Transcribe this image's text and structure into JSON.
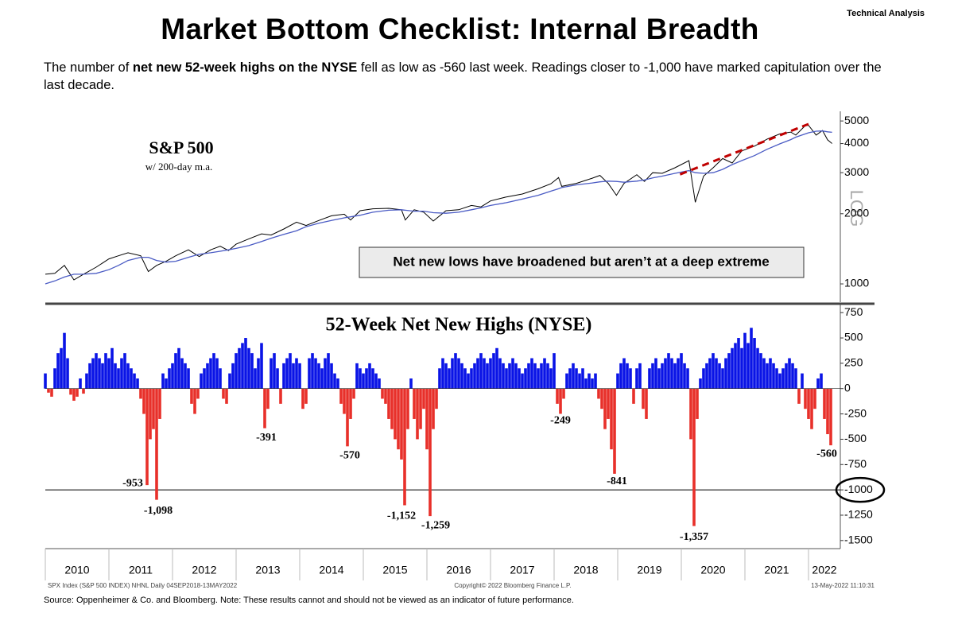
{
  "header": {
    "tag": "Technical Analysis",
    "title": "Market Bottom Checklist: Internal Breadth",
    "subtitle": [
      {
        "text": "The number of "
      },
      {
        "text": "net new 52-week highs on the NYSE",
        "bold": true
      },
      {
        "text": " fell as low as -560 last week.  Readings closer to -1,000 have marked capitulation over the last decade."
      }
    ]
  },
  "chart_data": [
    {
      "type": "line",
      "title": "S&P 500",
      "subtitle": "w/ 200-day m.a.",
      "annotation": "Net new lows have broadened but aren’t at a deep extreme",
      "log_scale": true,
      "scale_label": "LOG",
      "xlim": [
        2010,
        2022.5
      ],
      "ylim": [
        835,
        5500
      ],
      "yticks": [
        1000,
        2000,
        3000,
        4000,
        5000
      ],
      "x": [
        2010,
        2010.15,
        2010.3,
        2010.45,
        2010.6,
        2010.8,
        2011,
        2011.15,
        2011.3,
        2011.5,
        2011.62,
        2011.75,
        2011.9,
        2012.05,
        2012.25,
        2012.42,
        2012.6,
        2012.75,
        2012.88,
        2013,
        2013.2,
        2013.4,
        2013.55,
        2013.75,
        2013.95,
        2014.1,
        2014.3,
        2014.5,
        2014.7,
        2014.8,
        2014.95,
        2015.15,
        2015.4,
        2015.6,
        2015.66,
        2015.8,
        2015.95,
        2016.1,
        2016.3,
        2016.5,
        2016.7,
        2016.85,
        2017,
        2017.25,
        2017.5,
        2017.75,
        2017.95,
        2018.07,
        2018.12,
        2018.35,
        2018.6,
        2018.72,
        2018.85,
        2018.98,
        2019.1,
        2019.3,
        2019.42,
        2019.55,
        2019.7,
        2019.9,
        2020.12,
        2020.22,
        2020.35,
        2020.5,
        2020.65,
        2020.8,
        2020.95,
        2021.15,
        2021.35,
        2021.55,
        2021.72,
        2021.8,
        2021.95,
        2022,
        2022.12,
        2022.22,
        2022.3,
        2022.37
      ],
      "series": [
        {
          "color": "#000000",
          "values": [
            1100,
            1110,
            1200,
            1040,
            1100,
            1180,
            1280,
            1320,
            1360,
            1320,
            1130,
            1200,
            1250,
            1320,
            1400,
            1310,
            1400,
            1450,
            1390,
            1480,
            1560,
            1640,
            1620,
            1720,
            1840,
            1780,
            1870,
            1960,
            1990,
            1880,
            2060,
            2100,
            2110,
            2080,
            1880,
            2080,
            2030,
            1860,
            2060,
            2080,
            2170,
            2140,
            2270,
            2360,
            2430,
            2560,
            2690,
            2860,
            2620,
            2700,
            2840,
            2920,
            2700,
            2400,
            2700,
            2940,
            2750,
            3000,
            2980,
            3150,
            3380,
            2240,
            2900,
            3150,
            3450,
            3300,
            3720,
            3900,
            4180,
            4400,
            4480,
            4350,
            4780,
            4790,
            4350,
            4550,
            4150,
            4000
          ]
        },
        {
          "color": "#4a5bc4",
          "values": [
            1000,
            1030,
            1070,
            1100,
            1100,
            1110,
            1150,
            1200,
            1260,
            1300,
            1300,
            1260,
            1240,
            1250,
            1300,
            1340,
            1360,
            1380,
            1400,
            1420,
            1460,
            1520,
            1570,
            1630,
            1690,
            1760,
            1820,
            1870,
            1920,
            1940,
            1970,
            2030,
            2070,
            2080,
            2070,
            2050,
            2050,
            2020,
            2010,
            2030,
            2080,
            2120,
            2170,
            2230,
            2310,
            2400,
            2500,
            2560,
            2590,
            2660,
            2710,
            2740,
            2760,
            2750,
            2730,
            2760,
            2790,
            2850,
            2900,
            2980,
            3060,
            3000,
            2980,
            3000,
            3100,
            3250,
            3380,
            3550,
            3780,
            3990,
            4160,
            4260,
            4400,
            4450,
            4520,
            4530,
            4490,
            4470
          ]
        }
      ],
      "trendline": {
        "x": [
          2019.98,
          2022.0
        ],
        "y": [
          2950,
          4850
        ],
        "color": "#c00000"
      }
    },
    {
      "type": "bar",
      "title": "52-Week Net New Highs (NYSE)",
      "xlim": [
        2010,
        2022.5
      ],
      "ylim": [
        -1580,
        830
      ],
      "yticks": [
        -1500,
        -1250,
        -1000,
        -750,
        -500,
        -250,
        0,
        250,
        500,
        750
      ],
      "reference_line": -1000,
      "highlight_tick": -1000,
      "xticks": [
        2010,
        2011,
        2012,
        2013,
        2014,
        2015,
        2016,
        2017,
        2018,
        2019,
        2020,
        2021,
        2022
      ],
      "colors": {
        "positive": "#0a14e6",
        "negative": "#e8302a"
      },
      "x": [
        2010,
        2010.05,
        2010.1,
        2010.15,
        2010.2,
        2010.25,
        2010.3,
        2010.35,
        2010.4,
        2010.45,
        2010.5,
        2010.55,
        2010.6,
        2010.65,
        2010.7,
        2010.75,
        2010.8,
        2010.85,
        2010.9,
        2010.95,
        2011,
        2011.05,
        2011.1,
        2011.15,
        2011.2,
        2011.25,
        2011.3,
        2011.35,
        2011.4,
        2011.45,
        2011.5,
        2011.55,
        2011.6,
        2011.65,
        2011.7,
        2011.75,
        2011.8,
        2011.85,
        2011.9,
        2011.95,
        2012,
        2012.05,
        2012.1,
        2012.15,
        2012.2,
        2012.25,
        2012.3,
        2012.35,
        2012.4,
        2012.45,
        2012.5,
        2012.55,
        2012.6,
        2012.65,
        2012.7,
        2012.75,
        2012.8,
        2012.85,
        2012.9,
        2012.95,
        2013,
        2013.05,
        2013.1,
        2013.15,
        2013.2,
        2013.25,
        2013.3,
        2013.35,
        2013.4,
        2013.45,
        2013.5,
        2013.55,
        2013.6,
        2013.65,
        2013.7,
        2013.75,
        2013.8,
        2013.85,
        2013.9,
        2013.95,
        2014,
        2014.05,
        2014.1,
        2014.15,
        2014.2,
        2014.25,
        2014.3,
        2014.35,
        2014.4,
        2014.45,
        2014.5,
        2014.55,
        2014.6,
        2014.65,
        2014.7,
        2014.75,
        2014.8,
        2014.85,
        2014.9,
        2014.95,
        2015,
        2015.05,
        2015.1,
        2015.15,
        2015.2,
        2015.25,
        2015.3,
        2015.35,
        2015.4,
        2015.45,
        2015.5,
        2015.55,
        2015.6,
        2015.65,
        2015.7,
        2015.75,
        2015.8,
        2015.85,
        2015.9,
        2015.95,
        2016,
        2016.05,
        2016.1,
        2016.15,
        2016.2,
        2016.25,
        2016.3,
        2016.35,
        2016.4,
        2016.45,
        2016.5,
        2016.55,
        2016.6,
        2016.65,
        2016.7,
        2016.75,
        2016.8,
        2016.85,
        2016.9,
        2016.95,
        2017,
        2017.05,
        2017.1,
        2017.15,
        2017.2,
        2017.25,
        2017.3,
        2017.35,
        2017.4,
        2017.45,
        2017.5,
        2017.55,
        2017.6,
        2017.65,
        2017.7,
        2017.75,
        2017.8,
        2017.85,
        2017.9,
        2017.95,
        2018,
        2018.05,
        2018.1,
        2018.15,
        2018.2,
        2018.25,
        2018.3,
        2018.35,
        2018.4,
        2018.45,
        2018.5,
        2018.55,
        2018.6,
        2018.65,
        2018.7,
        2018.75,
        2018.8,
        2018.85,
        2018.9,
        2018.95,
        2019,
        2019.05,
        2019.1,
        2019.15,
        2019.2,
        2019.25,
        2019.3,
        2019.35,
        2019.4,
        2019.45,
        2019.5,
        2019.55,
        2019.6,
        2019.65,
        2019.7,
        2019.75,
        2019.8,
        2019.85,
        2019.9,
        2019.95,
        2020,
        2020.05,
        2020.1,
        2020.15,
        2020.2,
        2020.25,
        2020.3,
        2020.35,
        2020.4,
        2020.45,
        2020.5,
        2020.55,
        2020.6,
        2020.65,
        2020.7,
        2020.75,
        2020.8,
        2020.85,
        2020.9,
        2020.95,
        2021,
        2021.05,
        2021.1,
        2021.15,
        2021.2,
        2021.25,
        2021.3,
        2021.35,
        2021.4,
        2021.45,
        2021.5,
        2021.55,
        2021.6,
        2021.65,
        2021.7,
        2021.75,
        2021.8,
        2021.85,
        2021.9,
        2021.95,
        2022,
        2022.05,
        2022.1,
        2022.15,
        2022.2,
        2022.25,
        2022.3,
        2022.35
      ],
      "values": [
        150,
        -40,
        -80,
        200,
        350,
        400,
        550,
        300,
        -60,
        -120,
        -80,
        100,
        -50,
        150,
        250,
        300,
        350,
        300,
        250,
        350,
        300,
        400,
        250,
        200,
        300,
        350,
        250,
        200,
        150,
        100,
        -100,
        -250,
        -953,
        -500,
        -400,
        -1098,
        -300,
        150,
        100,
        200,
        250,
        350,
        400,
        300,
        250,
        200,
        -150,
        -250,
        -100,
        150,
        200,
        250,
        300,
        350,
        300,
        200,
        -100,
        -150,
        150,
        250,
        350,
        400,
        450,
        500,
        400,
        350,
        200,
        300,
        450,
        -391,
        -200,
        300,
        350,
        200,
        -150,
        250,
        300,
        350,
        250,
        300,
        250,
        -200,
        -150,
        300,
        350,
        300,
        250,
        200,
        300,
        350,
        250,
        150,
        100,
        -150,
        -250,
        -570,
        -300,
        -100,
        250,
        200,
        150,
        200,
        250,
        200,
        150,
        100,
        -100,
        -150,
        -300,
        -400,
        -500,
        -600,
        -700,
        -1152,
        -400,
        100,
        -300,
        -500,
        -400,
        -200,
        -600,
        -1259,
        -400,
        -200,
        200,
        300,
        250,
        200,
        300,
        350,
        300,
        250,
        200,
        150,
        200,
        250,
        300,
        350,
        300,
        250,
        300,
        350,
        400,
        300,
        250,
        200,
        250,
        300,
        250,
        200,
        150,
        200,
        250,
        300,
        250,
        200,
        250,
        300,
        250,
        200,
        350,
        -150,
        -249,
        -100,
        150,
        200,
        250,
        200,
        150,
        200,
        100,
        150,
        100,
        150,
        -100,
        -200,
        -400,
        -300,
        -600,
        -841,
        150,
        250,
        300,
        250,
        200,
        -150,
        200,
        250,
        -200,
        -300,
        200,
        250,
        300,
        200,
        250,
        300,
        350,
        300,
        250,
        300,
        350,
        250,
        200,
        -500,
        -1357,
        -300,
        100,
        200,
        250,
        300,
        350,
        300,
        250,
        200,
        300,
        350,
        400,
        450,
        500,
        400,
        550,
        450,
        600,
        500,
        400,
        350,
        300,
        250,
        300,
        250,
        200,
        150,
        200,
        250,
        300,
        250,
        200,
        -150,
        150,
        -200,
        -300,
        -400,
        -200,
        100,
        150,
        -300,
        -450,
        -560
      ],
      "annotations": [
        {
          "x": 2011.6,
          "value": -953
        },
        {
          "x": 2011.75,
          "value": -1098,
          "label": "-1,098"
        },
        {
          "x": 2013.45,
          "value": -391
        },
        {
          "x": 2014.75,
          "value": -570
        },
        {
          "x": 2015.65,
          "value": -1152,
          "label": "-1,152"
        },
        {
          "x": 2016.05,
          "value": -1259,
          "label": "-1,259"
        },
        {
          "x": 2018.1,
          "value": -249
        },
        {
          "x": 2018.95,
          "value": -841
        },
        {
          "x": 2020.2,
          "value": -1357,
          "label": "-1,357"
        },
        {
          "x": 2022.35,
          "value": -560
        }
      ]
    }
  ],
  "footer": {
    "left": "SPX Index (S&P 500 INDEX) NHNL  Daily 04SEP2018-13MAY2022",
    "center": "Copyright© 2022 Bloomberg Finance L.P.",
    "right": "13-May-2022 11:10:31",
    "source": "Source: Oppenheimer & Co. and Bloomberg.  Note: These results cannot and should not be viewed as an indicator of future performance."
  }
}
